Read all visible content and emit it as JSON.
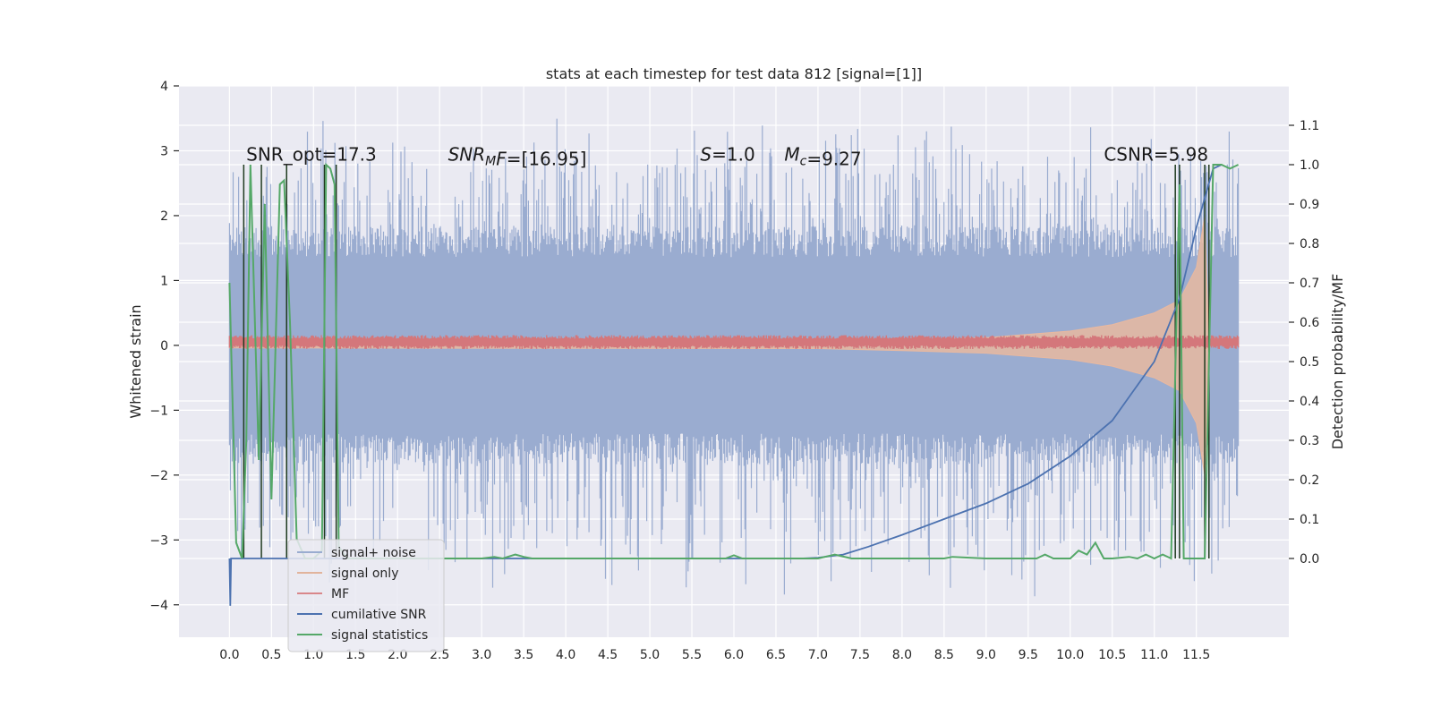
{
  "chart_data": {
    "type": "line",
    "title": "stats at each timestep for test data 812 [signal=[1]]",
    "ylabel": "Whitened strain",
    "y2label": "Detection probability/MF",
    "xlim": [
      -0.6,
      12.6
    ],
    "ylim": [
      -4.5,
      4.0
    ],
    "y2lim": [
      -0.2,
      1.2
    ],
    "x_ticks": [
      0.0,
      0.5,
      1.0,
      1.5,
      2.0,
      2.5,
      3.0,
      3.5,
      4.0,
      4.5,
      5.0,
      5.5,
      6.0,
      6.5,
      7.0,
      7.5,
      8.0,
      8.5,
      9.0,
      9.5,
      10.0,
      10.5,
      11.0,
      11.5
    ],
    "x_tick_labels": [
      "0.0",
      "0.5",
      "1.0",
      "1.5",
      "2.0",
      "2.5",
      "3.0",
      "3.5",
      "4.0",
      "4.5",
      "5.0",
      "5.5",
      "6.0",
      "6.5",
      "7.0",
      "7.5",
      "8.0",
      "8.5",
      "9.0",
      "9.5",
      "10.0",
      "10.5",
      "11.0",
      "11.5"
    ],
    "y_ticks": [
      -4,
      -3,
      -2,
      -1,
      0,
      1,
      2,
      3,
      4
    ],
    "y_tick_labels": [
      "−4",
      "−3",
      "−2",
      "−1",
      "0",
      "1",
      "2",
      "3",
      "4"
    ],
    "y2_ticks": [
      0.0,
      0.1,
      0.2,
      0.3,
      0.4,
      0.5,
      0.6,
      0.7,
      0.8,
      0.9,
      1.0,
      1.1
    ],
    "y2_tick_labels": [
      "0.0",
      "0.1",
      "0.2",
      "0.3",
      "0.4",
      "0.5",
      "0.6",
      "0.7",
      "0.8",
      "0.9",
      "1.0",
      "1.1"
    ],
    "grid": true,
    "legend_position": "lower-left",
    "noise_band": {
      "x_range": [
        0.0,
        12.0
      ],
      "typical_range": [
        -1.6,
        1.6
      ],
      "extreme_range": [
        -4.0,
        3.6
      ]
    },
    "signal_envelope": {
      "x": [
        0.0,
        7.0,
        8.0,
        9.0,
        10.0,
        10.5,
        11.0,
        11.3,
        11.5,
        11.6,
        11.65
      ],
      "amplitude": [
        0.04,
        0.05,
        0.08,
        0.12,
        0.22,
        0.32,
        0.5,
        0.7,
        1.2,
        2.0,
        0.0
      ]
    },
    "mf_band": {
      "x_range": [
        0.0,
        12.0
      ],
      "center": 0.05,
      "half_width": 0.09
    },
    "cumulative_snr": {
      "x": [
        0.0,
        0.01,
        0.02,
        6.8,
        7.0,
        7.3,
        7.6,
        8.0,
        8.5,
        9.0,
        9.5,
        10.0,
        10.5,
        11.0,
        11.3,
        11.5,
        11.7,
        11.8
      ],
      "y": [
        0.0,
        -0.12,
        0.0,
        0.0,
        0.002,
        0.01,
        0.03,
        0.06,
        0.1,
        0.14,
        0.19,
        0.26,
        0.35,
        0.5,
        0.66,
        0.84,
        0.99,
        1.0
      ]
    },
    "signal_statistics": {
      "x": [
        0.0,
        0.08,
        0.15,
        0.2,
        0.25,
        0.35,
        0.42,
        0.5,
        0.6,
        0.65,
        0.72,
        0.8,
        0.9,
        1.0,
        1.1,
        1.15,
        1.2,
        1.25,
        1.3,
        1.4,
        2.0,
        3.0,
        3.15,
        3.25,
        3.4,
        3.5,
        3.6,
        4.0,
        5.0,
        5.9,
        6.0,
        6.1,
        6.5,
        7.0,
        7.2,
        7.4,
        8.0,
        8.5,
        8.6,
        9.0,
        9.6,
        9.7,
        9.8,
        10.0,
        10.1,
        10.2,
        10.3,
        10.4,
        10.5,
        10.7,
        10.8,
        10.9,
        11.0,
        11.1,
        11.2,
        11.3,
        11.35,
        11.45,
        11.6,
        11.7,
        11.8,
        11.9,
        12.0
      ],
      "y": [
        0.7,
        0.04,
        0.0,
        0.3,
        1.0,
        0.25,
        0.9,
        0.15,
        0.95,
        0.96,
        0.6,
        0.05,
        0.0,
        0.0,
        0.02,
        1.0,
        0.99,
        0.95,
        0.03,
        0.0,
        0.0,
        0.0,
        0.004,
        0.0,
        0.01,
        0.004,
        0.0,
        0.0,
        0.0,
        0.0,
        0.008,
        0.0,
        0.0,
        0.0,
        0.01,
        0.0,
        0.0,
        0.0,
        0.004,
        0.0,
        0.0,
        0.01,
        0.0,
        0.0,
        0.02,
        0.01,
        0.04,
        0.0,
        0.0,
        0.004,
        0.0,
        0.01,
        0.0,
        0.01,
        0.0,
        0.95,
        0.0,
        0.0,
        0.0,
        1.0,
        1.0,
        0.99,
        1.0
      ]
    },
    "window_edges_x": [
      0.17,
      0.38,
      0.68,
      1.13,
      1.27,
      11.25,
      11.3,
      11.6,
      11.65
    ],
    "annotations": [
      {
        "id": "snr-opt",
        "text": "SNR_opt=17.3",
        "x": 0.2,
        "y": 2.85
      },
      {
        "id": "snr-mf",
        "text": "=[16.95]",
        "prefix": "SNR",
        "sub": "M",
        "suffix": "F",
        "x": 2.6,
        "y": 2.85
      },
      {
        "id": "s-value",
        "text": "=1.0",
        "prefix": "S",
        "x": 5.6,
        "y": 2.85
      },
      {
        "id": "mc-value",
        "text": "=9.27",
        "prefix": "M",
        "sub": "c",
        "x": 6.6,
        "y": 2.85
      },
      {
        "id": "csnr",
        "text": "CSNR=5.98",
        "x": 10.4,
        "y": 2.85
      }
    ],
    "legend": [
      {
        "label": "signal+ noise",
        "color": "#9aacd0"
      },
      {
        "label": "signal only",
        "color": "#e1b49c"
      },
      {
        "label": "MF",
        "color": "#d9878a"
      },
      {
        "label": "cumilative SNR",
        "color": "#4c72b0"
      },
      {
        "label": "signal statistics",
        "color": "#55a868"
      }
    ],
    "colors": {
      "background": "#eaeaf2",
      "grid": "#ffffff",
      "noise": "#9aacd0",
      "signal": "#e8b8a0",
      "mf": "#d4777b",
      "csnr": "#4c72b0",
      "stats": "#55a868",
      "window": "#1f3a1f"
    }
  }
}
